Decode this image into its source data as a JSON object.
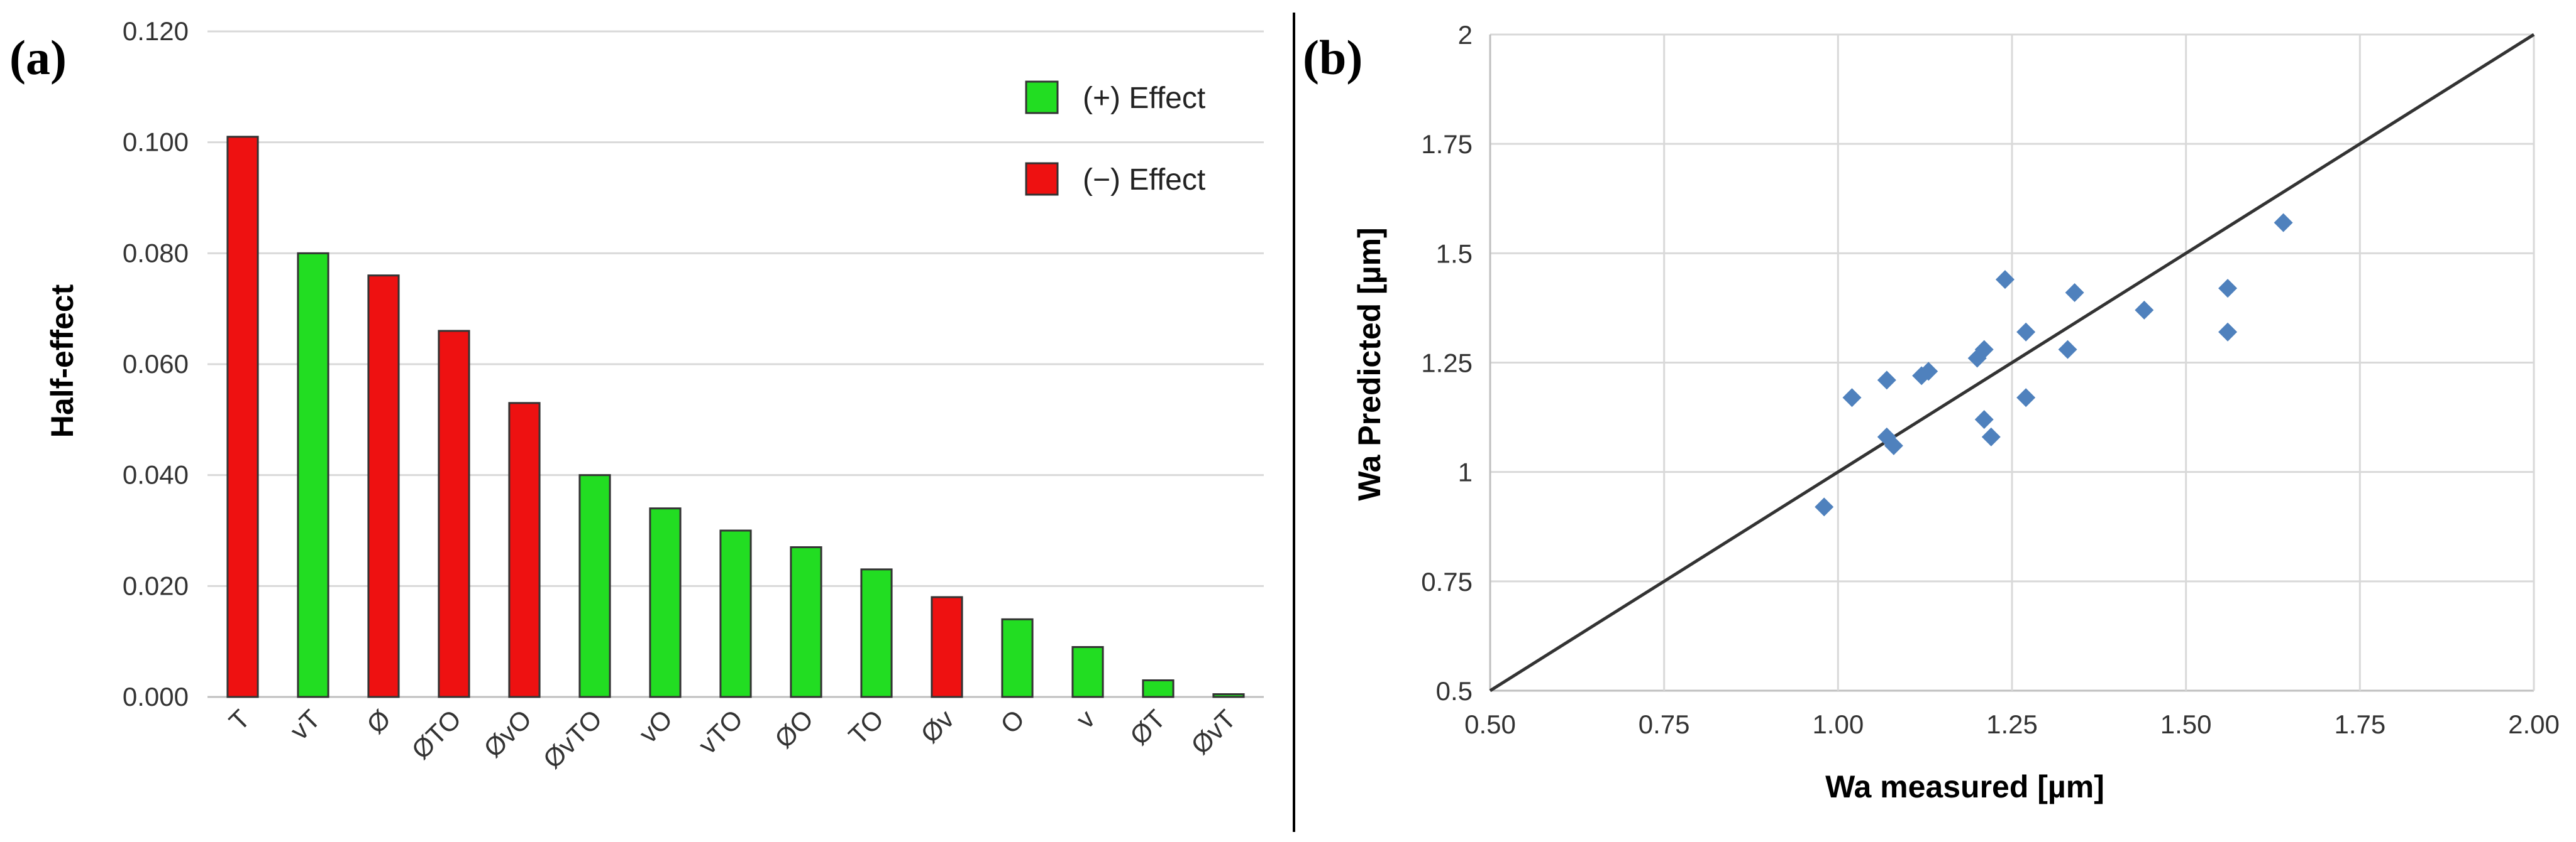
{
  "chart_data": [
    {
      "type": "bar",
      "panel_label": "(a)",
      "ylabel": "Half-effect",
      "xlabel": "",
      "categories": [
        "T",
        "vT",
        "Ø",
        "ØTO",
        "ØvO",
        "ØvTO",
        "vO",
        "vTO",
        "ØO",
        "TO",
        "Øv",
        "O",
        "v",
        "ØT",
        "ØvT"
      ],
      "values": [
        0.101,
        0.08,
        0.076,
        0.066,
        0.053,
        0.04,
        0.034,
        0.03,
        0.027,
        0.023,
        0.018,
        0.014,
        0.009,
        0.003,
        0.0005
      ],
      "effect": [
        "neg",
        "pos",
        "neg",
        "neg",
        "neg",
        "pos",
        "pos",
        "pos",
        "pos",
        "pos",
        "neg",
        "pos",
        "pos",
        "pos",
        "pos"
      ],
      "ylim": [
        0,
        0.12
      ],
      "yticks": [
        0,
        0.02,
        0.04,
        0.06,
        0.08,
        0.1,
        0.12
      ],
      "ytick_labels": [
        "0.000",
        "0.020",
        "0.040",
        "0.060",
        "0.080",
        "0.100",
        "0.120"
      ],
      "grid": true,
      "legend": {
        "placement": "top-right",
        "entries": [
          {
            "label": "(+) Effect",
            "key": "pos"
          },
          {
            "label": "(−) Effect",
            "key": "neg"
          }
        ]
      },
      "colors": {
        "pos": "#22dd22",
        "neg": "#ee1111",
        "edge": "#333333"
      }
    },
    {
      "type": "scatter",
      "panel_label": "(b)",
      "xlabel": "Wa measured [µm]",
      "ylabel": "Wa Predicted [µm]",
      "xlim": [
        0.5,
        2.0
      ],
      "ylim": [
        0.5,
        2.0
      ],
      "xticks": [
        0.5,
        0.75,
        1.0,
        1.25,
        1.5,
        1.75,
        2.0
      ],
      "xtick_labels": [
        "0.50",
        "0.75",
        "1.00",
        "1.25",
        "1.50",
        "1.75",
        "2.00"
      ],
      "yticks": [
        0.5,
        0.75,
        1,
        1.25,
        1.5,
        1.75,
        2
      ],
      "ytick_labels": [
        "0.5",
        "0.75",
        "1",
        "1.25",
        "1.5",
        "1.75",
        "2"
      ],
      "grid": true,
      "reference_line": {
        "from": [
          0.5,
          0.5
        ],
        "to": [
          2.0,
          2.0
        ]
      },
      "marker": "diamond",
      "colors": {
        "marker": "#4f81bd",
        "line": "#333333"
      },
      "points": [
        {
          "x": 0.98,
          "y": 0.92
        },
        {
          "x": 1.02,
          "y": 1.17
        },
        {
          "x": 1.07,
          "y": 1.21
        },
        {
          "x": 1.07,
          "y": 1.08
        },
        {
          "x": 1.08,
          "y": 1.06
        },
        {
          "x": 1.12,
          "y": 1.22
        },
        {
          "x": 1.13,
          "y": 1.23
        },
        {
          "x": 1.2,
          "y": 1.26
        },
        {
          "x": 1.21,
          "y": 1.28
        },
        {
          "x": 1.21,
          "y": 1.12
        },
        {
          "x": 1.22,
          "y": 1.08
        },
        {
          "x": 1.24,
          "y": 1.44
        },
        {
          "x": 1.27,
          "y": 1.32
        },
        {
          "x": 1.27,
          "y": 1.17
        },
        {
          "x": 1.33,
          "y": 1.28
        },
        {
          "x": 1.34,
          "y": 1.41
        },
        {
          "x": 1.44,
          "y": 1.37
        },
        {
          "x": 1.56,
          "y": 1.42
        },
        {
          "x": 1.56,
          "y": 1.32
        },
        {
          "x": 1.64,
          "y": 1.57
        }
      ]
    }
  ]
}
